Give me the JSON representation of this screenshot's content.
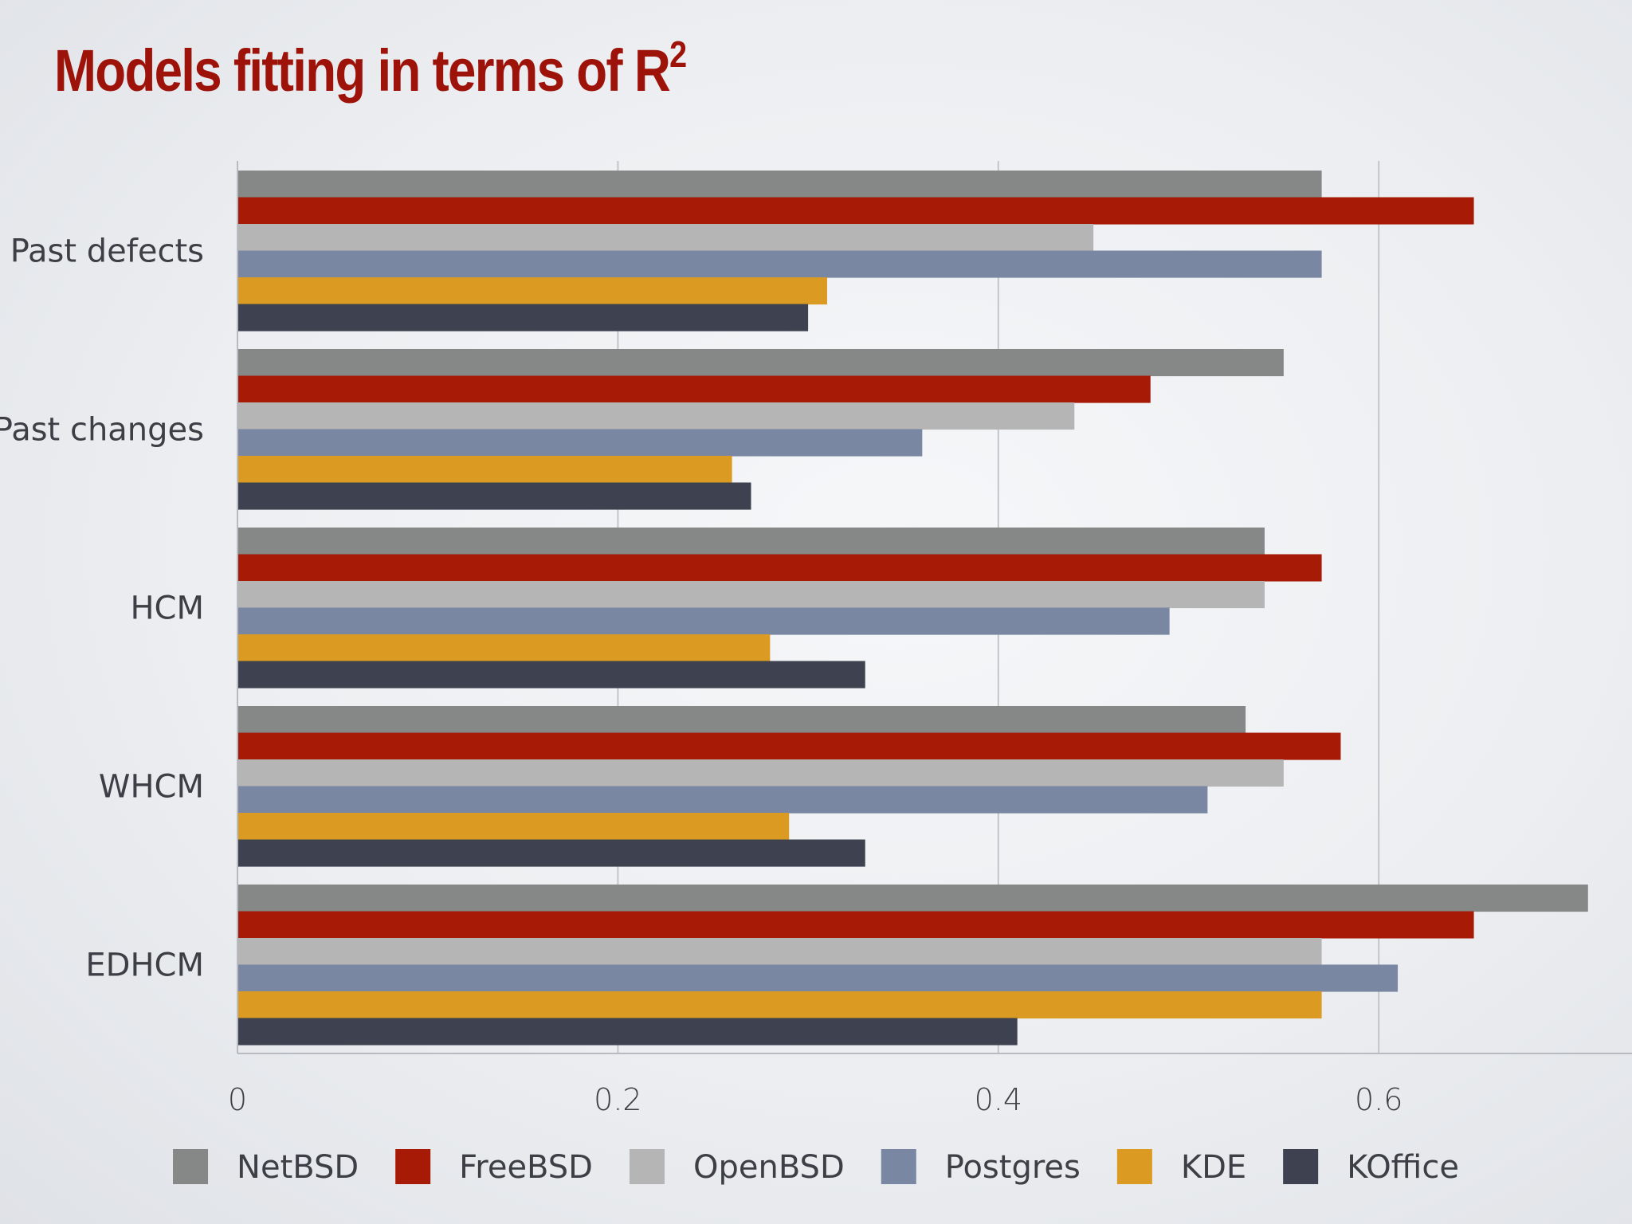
{
  "title_text": "Models fitting in terms of R",
  "title_sup": "2",
  "chart_data": {
    "type": "bar",
    "orientation": "horizontal",
    "title": "Models fitting in terms of R2",
    "categories": [
      "Past defects",
      "Past changes",
      "HCM",
      "WHCM",
      "EDHCM"
    ],
    "series": [
      {
        "name": "NetBSD",
        "color": "#858886",
        "values": [
          0.57,
          0.55,
          0.54,
          0.53,
          0.71
        ]
      },
      {
        "name": "FreeBSD",
        "color": "#a61a06",
        "values": [
          0.65,
          0.48,
          0.57,
          0.58,
          0.65
        ]
      },
      {
        "name": "OpenBSD",
        "color": "#b5b5b5",
        "values": [
          0.45,
          0.44,
          0.54,
          0.55,
          0.57
        ]
      },
      {
        "name": "Postgres",
        "color": "#7987a2",
        "values": [
          0.57,
          0.36,
          0.49,
          0.51,
          0.61
        ]
      },
      {
        "name": "KDE",
        "color": "#db9a22",
        "values": [
          0.31,
          0.26,
          0.28,
          0.29,
          0.57
        ]
      },
      {
        "name": "KOffice",
        "color": "#3e4250",
        "values": [
          0.3,
          0.27,
          0.33,
          0.33,
          0.41
        ]
      }
    ],
    "xlim": [
      0,
      0.72
    ],
    "xticks": [
      0,
      0.2,
      0.4,
      0.6
    ],
    "xtick_labels": [
      "0",
      "0.2",
      "0.4",
      "0.6"
    ],
    "grid": true,
    "xlabel": "",
    "ylabel": "",
    "legend_position": "bottom"
  }
}
